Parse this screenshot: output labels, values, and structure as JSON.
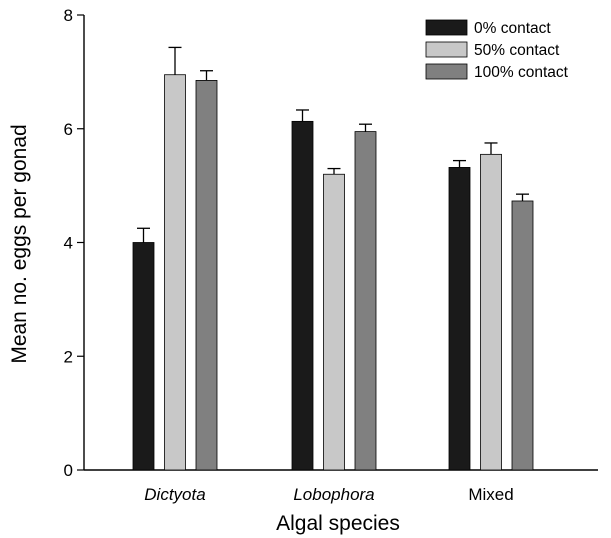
{
  "chart_data": {
    "type": "bar",
    "xlabel": "Algal species",
    "ylabel": "Mean no. eggs per gonad",
    "ylim": [
      0,
      8
    ],
    "yticks": [
      0,
      2,
      4,
      6,
      8
    ],
    "categories": [
      {
        "label": "Dictyota",
        "italic": true
      },
      {
        "label": "Lobophora",
        "italic": true
      },
      {
        "label": "Mixed",
        "italic": false
      }
    ],
    "series": [
      {
        "name": "0% contact",
        "color": "#1a1a1a",
        "values": [
          4.0,
          6.13,
          5.32
        ],
        "errors": [
          0.25,
          0.2,
          0.12
        ]
      },
      {
        "name": "50% contact",
        "color": "#c8c8c8",
        "values": [
          6.95,
          5.2,
          5.55
        ],
        "errors": [
          0.48,
          0.1,
          0.2
        ]
      },
      {
        "name": "100% contact",
        "color": "#808080",
        "values": [
          6.85,
          5.95,
          4.73
        ],
        "errors": [
          0.17,
          0.13,
          0.12
        ]
      }
    ],
    "legend_position": "top-right",
    "grid": false
  }
}
